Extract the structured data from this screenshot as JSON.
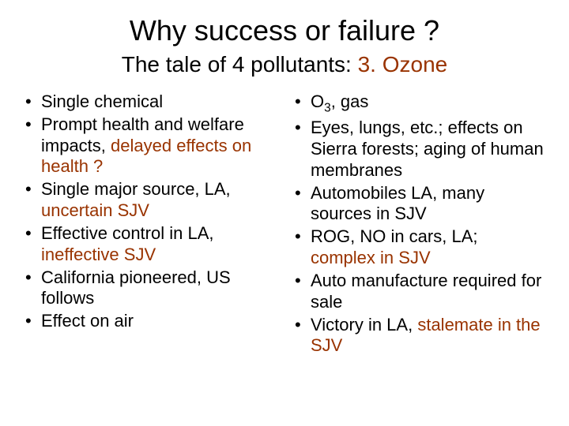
{
  "colors": {
    "text": "#000000",
    "accent": "#993300",
    "background": "#ffffff"
  },
  "title": "Why success or failure ?",
  "subtitle_prefix": "The tale of 4 pollutants: ",
  "subtitle_accent": "3. Ozone",
  "left_list": [
    {
      "pre": "Single chemical",
      "accent": ""
    },
    {
      "pre": "Prompt health and welfare impacts, ",
      "accent": "delayed effects on health ?"
    },
    {
      "pre": "Single major source, LA, ",
      "accent": "uncertain SJV"
    },
    {
      "pre": "Effective control in LA, ",
      "accent": "ineffective SJV"
    },
    {
      "pre": "California pioneered, US follows",
      "accent": ""
    },
    {
      "pre": "Effect on air",
      "accent": ""
    }
  ],
  "right_list": [
    {
      "pre_html": "O<span class=\"subscript\">3</span>, gas",
      "accent": ""
    },
    {
      "pre_html": "Eyes, lungs, etc.; effects on Sierra forests; aging of human membranes",
      "accent": ""
    },
    {
      "pre_html": "Automobiles LA, many sources in SJV",
      "accent": ""
    },
    {
      "pre_html": "ROG, NO in cars, LA; ",
      "accent": "complex in SJV"
    },
    {
      "pre_html": "Auto manufacture required for sale",
      "accent": ""
    },
    {
      "pre_html": "Victory in LA, ",
      "accent": "stalemate in the SJV"
    }
  ]
}
